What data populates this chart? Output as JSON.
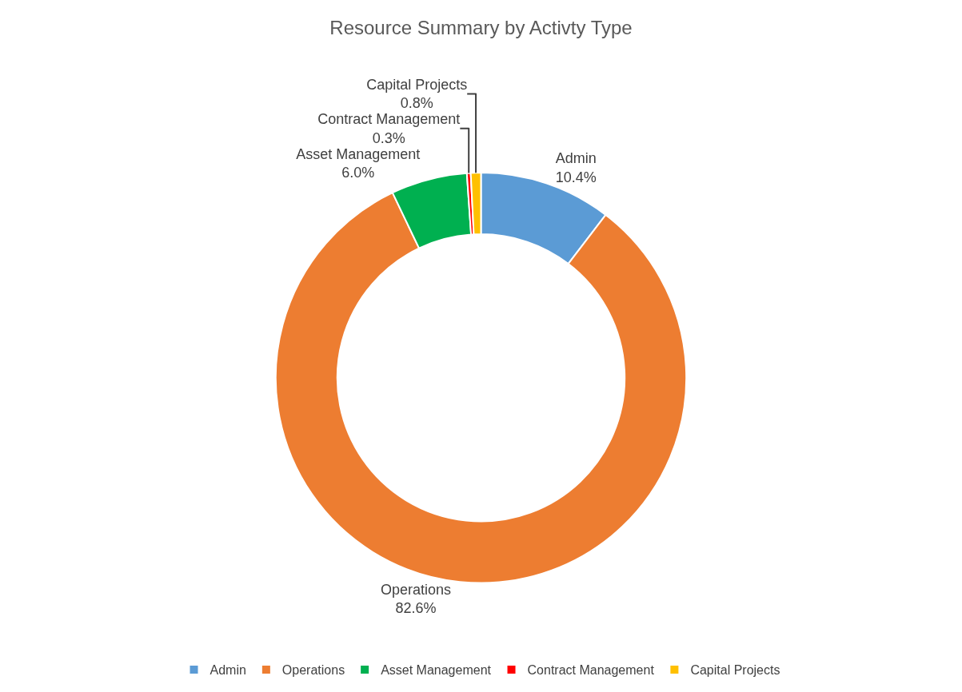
{
  "chart_data": {
    "type": "donut",
    "title": "Resource Summary by Activty Type",
    "categories": [
      "Admin",
      "Operations",
      "Asset Management",
      "Contract Management",
      "Capital Projects"
    ],
    "values": [
      10.4,
      82.6,
      6.0,
      0.3,
      0.8
    ],
    "value_labels": [
      "10.4%",
      "82.6%",
      "6.0%",
      "0.3%",
      "0.8%"
    ],
    "colors": [
      "#5b9bd5",
      "#ed7d31",
      "#00b050",
      "#ff0000",
      "#ffc000"
    ],
    "legend": "bottom"
  }
}
